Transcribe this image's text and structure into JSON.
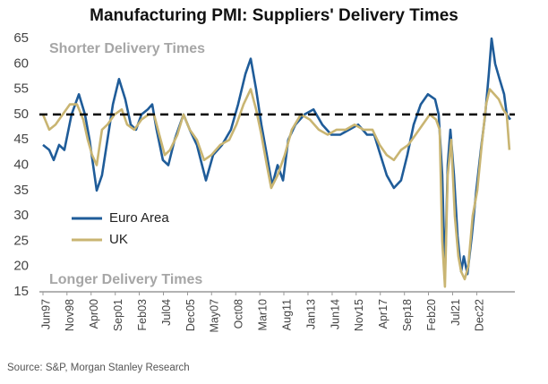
{
  "chart_data": {
    "type": "line",
    "title": "Manufacturing PMI: Suppliers' Delivery Times",
    "annotations": [
      "Shorter Delivery Times",
      "Longer Delivery Times"
    ],
    "source": "Source: S&P, Morgan Stanley Research",
    "reference_line": 50,
    "xlim": [
      1997.21,
      2025.16
    ],
    "xticks": [
      {
        "value": 1997.42,
        "label": "Jun97"
      },
      {
        "value": 1998.83,
        "label": "Nov98"
      },
      {
        "value": 2000.25,
        "label": "Apr00"
      },
      {
        "value": 2001.67,
        "label": "Sep01"
      },
      {
        "value": 2003.08,
        "label": "Feb03"
      },
      {
        "value": 2004.5,
        "label": "Jul04"
      },
      {
        "value": 2005.92,
        "label": "Dec05"
      },
      {
        "value": 2007.33,
        "label": "May07"
      },
      {
        "value": 2008.75,
        "label": "Oct08"
      },
      {
        "value": 2010.17,
        "label": "Mar10"
      },
      {
        "value": 2011.58,
        "label": "Aug11"
      },
      {
        "value": 2013.0,
        "label": "Jan13"
      },
      {
        "value": 2014.42,
        "label": "Jun14"
      },
      {
        "value": 2015.83,
        "label": "Nov15"
      },
      {
        "value": 2017.25,
        "label": "Apr17"
      },
      {
        "value": 2018.67,
        "label": "Sep18"
      },
      {
        "value": 2020.08,
        "label": "Feb20"
      },
      {
        "value": 2021.5,
        "label": "Jul21"
      },
      {
        "value": 2022.92,
        "label": "Dec22"
      }
    ],
    "ylim": [
      15,
      65
    ],
    "yticks": [
      15,
      20,
      25,
      30,
      35,
      40,
      45,
      50,
      55,
      60,
      65
    ],
    "grid": false,
    "legend": "lower-left",
    "series": [
      {
        "name": "Euro Area",
        "color": "#1f5c99",
        "x": [
          1997.42,
          1997.79,
          1998.05,
          1998.37,
          1998.68,
          1999.1,
          1999.53,
          1999.89,
          2000.16,
          2000.37,
          2000.58,
          2000.89,
          2001.21,
          2001.53,
          2001.89,
          2002.26,
          2002.58,
          2002.89,
          2003.21,
          2003.58,
          2003.84,
          2004.1,
          2004.47,
          2004.79,
          2005.16,
          2005.68,
          2006.05,
          2006.47,
          2007.0,
          2007.42,
          2007.95,
          2008.47,
          2008.89,
          2009.32,
          2009.63,
          2009.95,
          2010.26,
          2010.58,
          2010.89,
          2011.21,
          2011.53,
          2011.84,
          2012.26,
          2012.79,
          2013.32,
          2013.84,
          2014.37,
          2014.89,
          2015.42,
          2015.95,
          2016.47,
          2016.89,
          2017.26,
          2017.63,
          2018.05,
          2018.47,
          2018.84,
          2019.21,
          2019.63,
          2020.05,
          2020.47,
          2020.68,
          2020.89,
          2021.05,
          2021.21,
          2021.37,
          2021.58,
          2021.79,
          2022.0,
          2022.16,
          2022.37,
          2022.63,
          2022.89,
          2023.16,
          2023.42,
          2023.63,
          2023.79,
          2024.0,
          2024.26,
          2024.53,
          2024.68,
          2024.89
        ],
        "values": [
          44,
          43,
          41,
          44,
          43,
          50,
          54,
          50,
          45,
          40,
          35,
          38,
          45,
          52,
          57,
          53,
          48,
          47,
          50,
          51,
          52,
          47,
          41,
          40,
          45,
          50,
          47,
          44,
          37,
          42,
          44,
          47,
          52,
          58,
          61,
          55,
          48,
          42,
          36,
          40,
          37,
          45,
          48,
          50,
          51,
          48,
          46,
          46,
          47,
          48,
          46,
          46,
          42,
          38,
          35.5,
          37,
          42,
          48,
          52,
          54,
          53,
          50,
          38,
          18,
          40,
          47,
          38,
          26,
          19,
          22,
          18.5,
          26,
          35,
          43,
          50,
          58,
          65,
          60,
          57,
          54,
          50,
          49
        ]
      },
      {
        "name": "UK",
        "color": "#c9b572",
        "x": [
          1997.42,
          1997.79,
          1998.16,
          1998.58,
          1999.0,
          1999.42,
          1999.79,
          2000.05,
          2000.31,
          2000.58,
          2000.89,
          2001.21,
          2001.63,
          2002.05,
          2002.37,
          2002.79,
          2003.21,
          2003.63,
          2003.95,
          2004.26,
          2004.58,
          2004.89,
          2005.32,
          2005.68,
          2006.05,
          2006.47,
          2006.89,
          2007.32,
          2007.84,
          2008.37,
          2008.79,
          2009.21,
          2009.63,
          2009.95,
          2010.26,
          2010.58,
          2010.84,
          2011.21,
          2011.63,
          2012.05,
          2012.58,
          2013.11,
          2013.63,
          2014.16,
          2014.68,
          2015.21,
          2015.74,
          2016.26,
          2016.79,
          2017.21,
          2017.63,
          2018.05,
          2018.47,
          2018.89,
          2019.32,
          2019.74,
          2020.16,
          2020.53,
          2020.74,
          2020.89,
          2021.05,
          2021.21,
          2021.42,
          2021.63,
          2021.84,
          2022.0,
          2022.21,
          2022.42,
          2022.68,
          2022.95,
          2023.21,
          2023.47,
          2023.68,
          2023.95,
          2024.21,
          2024.47,
          2024.68,
          2024.84
        ],
        "values": [
          50,
          47,
          48,
          50,
          52,
          52,
          49,
          45,
          42,
          40,
          47,
          48,
          50,
          51,
          48,
          47,
          49,
          50,
          50,
          46,
          42,
          43,
          46,
          50,
          47,
          45,
          41,
          42,
          44,
          45,
          48,
          52,
          55,
          51,
          46,
          40,
          35.5,
          38,
          42,
          47,
          50,
          49,
          47,
          46,
          47,
          47,
          48,
          47,
          47,
          44,
          42,
          41,
          43,
          44,
          46,
          48,
          50,
          49,
          47,
          25,
          16,
          38,
          45,
          30,
          22,
          19,
          17.5,
          20,
          30,
          35,
          44,
          52,
          55,
          54,
          53,
          51,
          50,
          43
        ]
      }
    ]
  }
}
